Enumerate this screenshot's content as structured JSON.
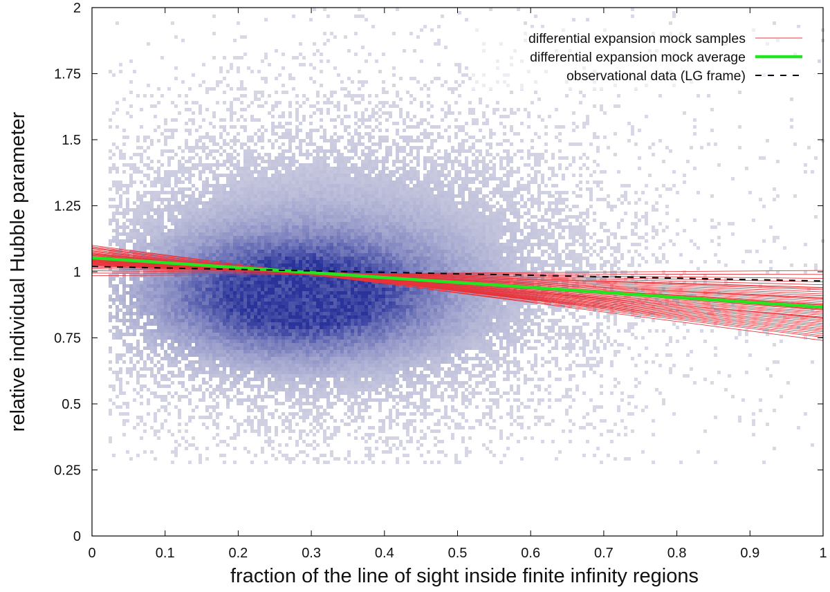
{
  "chart_data": {
    "type": "scatter",
    "xlabel": "fraction of the line of sight inside finite infinity regions",
    "ylabel": "relative individual Hubble parameter",
    "xlim": [
      0,
      1
    ],
    "ylim": [
      0,
      2
    ],
    "x_ticks": [
      {
        "value": 0,
        "label": "0"
      },
      {
        "value": 0.1,
        "label": "0.1"
      },
      {
        "value": 0.2,
        "label": "0.2"
      },
      {
        "value": 0.3,
        "label": "0.3"
      },
      {
        "value": 0.4,
        "label": "0.4"
      },
      {
        "value": 0.5,
        "label": "0.5"
      },
      {
        "value": 0.6,
        "label": "0.6"
      },
      {
        "value": 0.7,
        "label": "0.7"
      },
      {
        "value": 0.8,
        "label": "0.8"
      },
      {
        "value": 0.9,
        "label": "0.9"
      },
      {
        "value": 1,
        "label": "1"
      }
    ],
    "y_ticks": [
      {
        "value": 0,
        "label": "0"
      },
      {
        "value": 0.25,
        "label": "0.25"
      },
      {
        "value": 0.5,
        "label": "0.5"
      },
      {
        "value": 0.75,
        "label": "0.75"
      },
      {
        "value": 1,
        "label": "1"
      },
      {
        "value": 1.25,
        "label": "1.25"
      },
      {
        "value": 1.5,
        "label": "1.5"
      },
      {
        "value": 1.75,
        "label": "1.75"
      },
      {
        "value": 2,
        "label": "2"
      }
    ],
    "grid": false,
    "legend_position": "top-right",
    "legend": [
      {
        "label": "differential expansion mock samples",
        "color": "#e8333a",
        "style": "thin-solid"
      },
      {
        "label": "differential expansion mock average",
        "color": "#22e622",
        "style": "thick-solid"
      },
      {
        "label": "observational data (LG frame)",
        "color": "#000000",
        "style": "dashed"
      }
    ],
    "density_histogram": {
      "description_color_low": "#d9d9e6",
      "description_color_high": "#29339a",
      "core_center": [
        0.28,
        0.92
      ],
      "core_sigma": [
        0.12,
        0.14
      ],
      "halo_center": [
        0.33,
        1.0
      ],
      "halo_sigma": [
        0.2,
        0.32
      ],
      "x_range": [
        0.02,
        1.0
      ],
      "y_range": [
        0.28,
        2.0
      ]
    },
    "series": [
      {
        "name": "differential expansion mock samples",
        "kind": "lines",
        "color": "#e8333a",
        "lines": [
          [
            1.095,
            0.758
          ],
          [
            1.088,
            0.766
          ],
          [
            1.083,
            0.773
          ],
          [
            1.079,
            0.779
          ],
          [
            1.076,
            0.785
          ],
          [
            1.072,
            0.792
          ],
          [
            1.069,
            0.798
          ],
          [
            1.066,
            0.804
          ],
          [
            1.063,
            0.811
          ],
          [
            1.061,
            0.817
          ],
          [
            1.058,
            0.823
          ],
          [
            1.056,
            0.829
          ],
          [
            1.054,
            0.836
          ],
          [
            1.052,
            0.842
          ],
          [
            1.05,
            0.848
          ],
          [
            1.048,
            0.855
          ],
          [
            1.046,
            0.861
          ],
          [
            1.044,
            0.868
          ],
          [
            1.042,
            0.874
          ],
          [
            1.04,
            0.881
          ],
          [
            1.038,
            0.888
          ],
          [
            1.036,
            0.895
          ],
          [
            1.034,
            0.902
          ],
          [
            1.032,
            0.909
          ],
          [
            1.03,
            0.916
          ],
          [
            1.028,
            0.924
          ],
          [
            1.025,
            0.932
          ],
          [
            1.022,
            0.941
          ],
          [
            1.018,
            0.951
          ],
          [
            1.012,
            0.962
          ],
          [
            1.004,
            0.975
          ],
          [
            0.995,
            0.99
          ],
          [
            0.985,
            1.005
          ],
          [
            1.1,
            0.74
          ],
          [
            1.091,
            0.752
          ],
          [
            1.067,
            0.826
          ],
          [
            1.057,
            0.858
          ],
          [
            1.047,
            0.876
          ],
          [
            1.039,
            0.899
          ],
          [
            1.026,
            0.937
          ]
        ]
      },
      {
        "name": "differential expansion mock average",
        "kind": "line",
        "color": "#22e622",
        "points": [
          [
            0,
            1.053
          ],
          [
            1,
            0.866
          ]
        ]
      },
      {
        "name": "observational data (LG frame)",
        "kind": "line",
        "color": "#000000",
        "points": [
          [
            0,
            1.02
          ],
          [
            1,
            0.965
          ]
        ]
      }
    ]
  }
}
